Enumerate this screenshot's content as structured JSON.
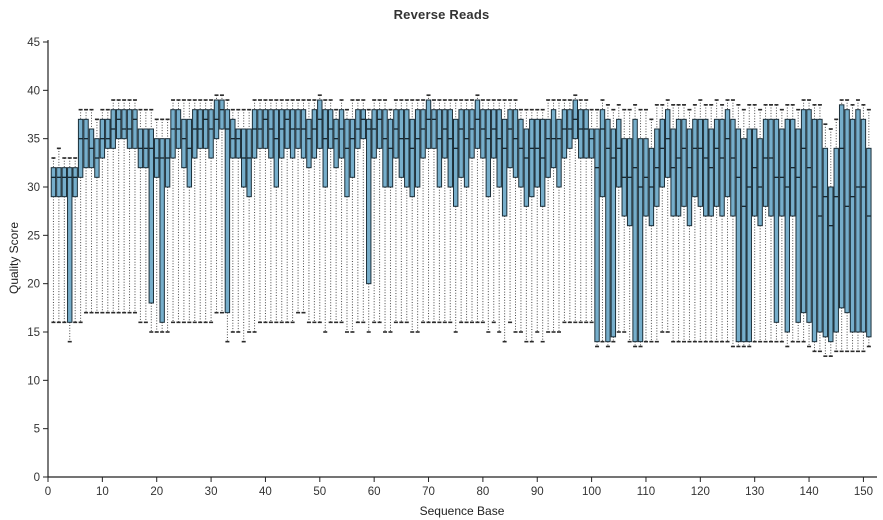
{
  "chart_data": {
    "type": "boxplot",
    "title": "Reverse Reads",
    "xlabel": "Sequence Base",
    "ylabel": "Quality Score",
    "xlim": [
      0,
      152.5
    ],
    "ylim": [
      0,
      45
    ],
    "x_ticks": [
      0,
      10,
      20,
      30,
      40,
      50,
      60,
      70,
      80,
      90,
      100,
      110,
      120,
      130,
      140,
      150
    ],
    "y_ticks": [
      0,
      5,
      10,
      15,
      20,
      25,
      30,
      35,
      40,
      45
    ],
    "grid": false,
    "legend": "none",
    "colors": {
      "box_fill": "#76aecb",
      "box_border": "#1c2f39",
      "median": "#142630",
      "whisker": "#4a4a4a",
      "cap": "#2a2a2a",
      "axis": "#222222",
      "text": "#333333"
    },
    "box_columns": [
      "position",
      "whisker_low",
      "q1",
      "median",
      "q3",
      "whisker_high"
    ],
    "boxes": [
      [
        1,
        16,
        29,
        31,
        32,
        33
      ],
      [
        2,
        16,
        29,
        31,
        32,
        34
      ],
      [
        3,
        16,
        29,
        31,
        32,
        33
      ],
      [
        4,
        14,
        16,
        31,
        32,
        33
      ],
      [
        5,
        16,
        29,
        31,
        32,
        33
      ],
      [
        6,
        16,
        31,
        35,
        37,
        38
      ],
      [
        7,
        17,
        32,
        35,
        37,
        38
      ],
      [
        8,
        17,
        32,
        34,
        36,
        38
      ],
      [
        9,
        17,
        31,
        33,
        35,
        37
      ],
      [
        10,
        17,
        33,
        35,
        37,
        38
      ],
      [
        11,
        17,
        34,
        35,
        37,
        38
      ],
      [
        12,
        17,
        34,
        36,
        38,
        39
      ],
      [
        13,
        17,
        35,
        37,
        38,
        39
      ],
      [
        14,
        17,
        35,
        36,
        38,
        39
      ],
      [
        15,
        17,
        34,
        36,
        38,
        39
      ],
      [
        16,
        17,
        34,
        37,
        38,
        39
      ],
      [
        17,
        16,
        32,
        34,
        36,
        38
      ],
      [
        18,
        16,
        32,
        34,
        36,
        38
      ],
      [
        19,
        15,
        18,
        34,
        36,
        38
      ],
      [
        20,
        15,
        31,
        33,
        35,
        37
      ],
      [
        21,
        15,
        16,
        33,
        35,
        37
      ],
      [
        22,
        15,
        30,
        33,
        35,
        37
      ],
      [
        23,
        16,
        33,
        36,
        38,
        39
      ],
      [
        24,
        16,
        34,
        36,
        38,
        39
      ],
      [
        25,
        16,
        32,
        35,
        37,
        39
      ],
      [
        26,
        16,
        30,
        34,
        37,
        39
      ],
      [
        27,
        16,
        33,
        36,
        38,
        39
      ],
      [
        28,
        16,
        34,
        36,
        38,
        39
      ],
      [
        29,
        16,
        34,
        37,
        38,
        39
      ],
      [
        30,
        16,
        33,
        36,
        38,
        39
      ],
      [
        31,
        17,
        35,
        37,
        39,
        39.5
      ],
      [
        32,
        17,
        36,
        38,
        39,
        39.5
      ],
      [
        33,
        14,
        17,
        36,
        38,
        39
      ],
      [
        34,
        15,
        33,
        35,
        37,
        38
      ],
      [
        35,
        15,
        33,
        35,
        36,
        38
      ],
      [
        36,
        14,
        30,
        33,
        36,
        38
      ],
      [
        37,
        15,
        29,
        33,
        36,
        38
      ],
      [
        38,
        15,
        33,
        36,
        38,
        39
      ],
      [
        39,
        16,
        34,
        36,
        38,
        39
      ],
      [
        40,
        16,
        34,
        37,
        38,
        39
      ],
      [
        41,
        16,
        33,
        36,
        38,
        39
      ],
      [
        42,
        16,
        30,
        35,
        38,
        39
      ],
      [
        43,
        16,
        33,
        36,
        38,
        39
      ],
      [
        44,
        16,
        34,
        37,
        38,
        39
      ],
      [
        45,
        16,
        33,
        36,
        38,
        39
      ],
      [
        46,
        17,
        34,
        36,
        38,
        39
      ],
      [
        47,
        17,
        33,
        36,
        38,
        39
      ],
      [
        48,
        16,
        32,
        35,
        37,
        39
      ],
      [
        49,
        16,
        33,
        36,
        38,
        39
      ],
      [
        50,
        16,
        34,
        37,
        39,
        39.5
      ],
      [
        51,
        15,
        30,
        35,
        38,
        39
      ],
      [
        52,
        16,
        34,
        36,
        38,
        39
      ],
      [
        53,
        16,
        32,
        35,
        37,
        38
      ],
      [
        54,
        16,
        33,
        36,
        38,
        39
      ],
      [
        55,
        15,
        29,
        34,
        37,
        38
      ],
      [
        56,
        15,
        31,
        35,
        37,
        39
      ],
      [
        57,
        16,
        34,
        36,
        38,
        39
      ],
      [
        58,
        16,
        35,
        37,
        38,
        39
      ],
      [
        59,
        15,
        20,
        36,
        37,
        38
      ],
      [
        60,
        16,
        33,
        36,
        38,
        39
      ],
      [
        61,
        16,
        34,
        37,
        38,
        39
      ],
      [
        62,
        15,
        30,
        35,
        38,
        39
      ],
      [
        63,
        15,
        30,
        34,
        37,
        38
      ],
      [
        64,
        16,
        33,
        36,
        38,
        39
      ],
      [
        65,
        16,
        31,
        35,
        38,
        39
      ],
      [
        66,
        16,
        30,
        35,
        38,
        39
      ],
      [
        67,
        15,
        29,
        34,
        37,
        39
      ],
      [
        68,
        15,
        30,
        35,
        38,
        39
      ],
      [
        69,
        16,
        33,
        36,
        38,
        39
      ],
      [
        70,
        16,
        34,
        37,
        39,
        39.5
      ],
      [
        71,
        16,
        34,
        37,
        38,
        39
      ],
      [
        72,
        16,
        30,
        35,
        38,
        39
      ],
      [
        73,
        16,
        33,
        36,
        38,
        39
      ],
      [
        74,
        16,
        30,
        35,
        38,
        39
      ],
      [
        75,
        15,
        28,
        34,
        37,
        39
      ],
      [
        76,
        16,
        31,
        36,
        38,
        39
      ],
      [
        77,
        16,
        30,
        35,
        38,
        39
      ],
      [
        78,
        16,
        33,
        36,
        38,
        39
      ],
      [
        79,
        16,
        34,
        37,
        39,
        39.5
      ],
      [
        80,
        16,
        33,
        36,
        38,
        39
      ],
      [
        81,
        15,
        29,
        35,
        38,
        39
      ],
      [
        82,
        16,
        33,
        36,
        38,
        39
      ],
      [
        83,
        15,
        30,
        35,
        38,
        39
      ],
      [
        84,
        14,
        27,
        34,
        37,
        39
      ],
      [
        85,
        16,
        32,
        36,
        38,
        39
      ],
      [
        86,
        15,
        31,
        35,
        38,
        39
      ],
      [
        87,
        15,
        30,
        34,
        37,
        38
      ],
      [
        88,
        14,
        28,
        33,
        36,
        38
      ],
      [
        89,
        14,
        29,
        34,
        37,
        38
      ],
      [
        90,
        15,
        30,
        34,
        37,
        38
      ],
      [
        91,
        14,
        28,
        33,
        37,
        38
      ],
      [
        92,
        15,
        31,
        35,
        37,
        39
      ],
      [
        93,
        15,
        32,
        35,
        38,
        39
      ],
      [
        94,
        15,
        30,
        35,
        37,
        39
      ],
      [
        95,
        16,
        33,
        36,
        38,
        39
      ],
      [
        96,
        16,
        34,
        36,
        38,
        39
      ],
      [
        97,
        16,
        35,
        37,
        39,
        39.5
      ],
      [
        98,
        16,
        33,
        36,
        38,
        39
      ],
      [
        99,
        16,
        33,
        36,
        38,
        39
      ],
      [
        100,
        16,
        33,
        35,
        36,
        38
      ],
      [
        101,
        13.5,
        14,
        32,
        36,
        38
      ],
      [
        102,
        14,
        29,
        36,
        38,
        39
      ],
      [
        103,
        13.5,
        14,
        34,
        37,
        38.5
      ],
      [
        104,
        14,
        14.5,
        33,
        36,
        38
      ],
      [
        105,
        15,
        30,
        34,
        37,
        38.5
      ],
      [
        106,
        15,
        27,
        31,
        35,
        38
      ],
      [
        107,
        14,
        26,
        31,
        35,
        38
      ],
      [
        108,
        13.5,
        14,
        32,
        37,
        38.5
      ],
      [
        109,
        13.5,
        14,
        30,
        35,
        38
      ],
      [
        110,
        14,
        27,
        31,
        35,
        38
      ],
      [
        111,
        14,
        26,
        30,
        34,
        37
      ],
      [
        112,
        14,
        28,
        32,
        36,
        38.5
      ],
      [
        113,
        15,
        30,
        34,
        37,
        38.5
      ],
      [
        114,
        15,
        31,
        35,
        38,
        39
      ],
      [
        115,
        14,
        27,
        32,
        36,
        38.5
      ],
      [
        116,
        14,
        27,
        33,
        37,
        38.5
      ],
      [
        117,
        14,
        28,
        34,
        37,
        38.5
      ],
      [
        118,
        14,
        26,
        32,
        36,
        38
      ],
      [
        119,
        14,
        29,
        34,
        37,
        38.5
      ],
      [
        120,
        14,
        28,
        34,
        37,
        39
      ],
      [
        121,
        14,
        27,
        33,
        37,
        38.5
      ],
      [
        122,
        14,
        27,
        32,
        36,
        38.5
      ],
      [
        123,
        14,
        28,
        34,
        37,
        39
      ],
      [
        124,
        14,
        27,
        33,
        37,
        38.5
      ],
      [
        125,
        14,
        29,
        35,
        38,
        39
      ],
      [
        126,
        13.5,
        27,
        33,
        37,
        39
      ],
      [
        127,
        13.5,
        14,
        31,
        36,
        38.5
      ],
      [
        128,
        13.5,
        14,
        28,
        35,
        38
      ],
      [
        129,
        13.5,
        14,
        30,
        36,
        38.5
      ],
      [
        130,
        14,
        27,
        32,
        36,
        38.5
      ],
      [
        131,
        14,
        26,
        30,
        35,
        38
      ],
      [
        132,
        14,
        28,
        33,
        37,
        38.5
      ],
      [
        133,
        14,
        27,
        33,
        37,
        38.5
      ],
      [
        134,
        14,
        16,
        31,
        37,
        38.5
      ],
      [
        135,
        14,
        27,
        31,
        36,
        38
      ],
      [
        136,
        13.5,
        15,
        30,
        37,
        38.5
      ],
      [
        137,
        14,
        27,
        32,
        37,
        38.5
      ],
      [
        138,
        14,
        16,
        31,
        36,
        38
      ],
      [
        139,
        14,
        17,
        34,
        38,
        39
      ],
      [
        140,
        13.5,
        16,
        32,
        38,
        39
      ],
      [
        141,
        13,
        14,
        30,
        37,
        38.5
      ],
      [
        142,
        13,
        15,
        27,
        37,
        38.5
      ],
      [
        143,
        12.5,
        14.5,
        29,
        34,
        36.5
      ],
      [
        144,
        12.5,
        14,
        26,
        30,
        36
      ],
      [
        145,
        13,
        15,
        29,
        34,
        37
      ],
      [
        146,
        13,
        17.5,
        34,
        38.5,
        39
      ],
      [
        147,
        13,
        17,
        28,
        38,
        39
      ],
      [
        148,
        13,
        15,
        29,
        37,
        38.5
      ],
      [
        149,
        13,
        15,
        30,
        38,
        39
      ],
      [
        150,
        13,
        15,
        30,
        37,
        38.5
      ],
      [
        151,
        13.5,
        14.5,
        27,
        34,
        38
      ]
    ]
  }
}
